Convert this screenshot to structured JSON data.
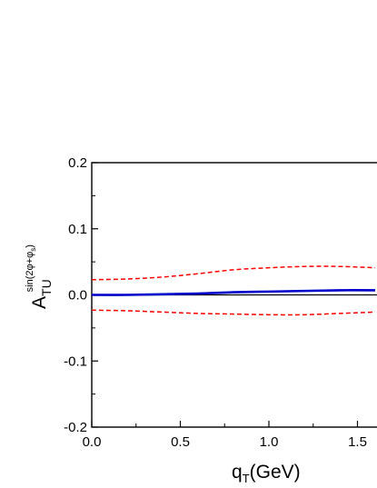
{
  "chart_data": {
    "type": "line",
    "xlabel": "q",
    "xlabel_sub": "T",
    "xlabel_unit": "(GeV)",
    "ylabel": "A",
    "ylabel_sub": "TU",
    "ylabel_sup": "sin(2φ+φ",
    "ylabel_sup_sub": "s",
    "ylabel_sup_close": ")",
    "xlim": [
      0,
      1.6
    ],
    "ylim": [
      -0.2,
      0.2
    ],
    "x_ticks": [
      0.0,
      0.5,
      1.0,
      1.5
    ],
    "x_tick_labels": [
      "0.0",
      "0.5",
      "1.0",
      "1.5"
    ],
    "y_ticks": [
      0.2,
      0.1,
      0.0,
      -0.1,
      -0.2
    ],
    "y_tick_labels": [
      "0.2",
      "0.1",
      "0.0",
      "-0.1",
      "-0.2"
    ],
    "x_minor_step": 0.25,
    "y_minor_step": 0.05,
    "reference_line": {
      "y": 0,
      "color": "#000000"
    },
    "series": [
      {
        "style": "solid",
        "color": "#0000cc",
        "x": [
          0.0,
          0.2,
          0.4,
          0.6,
          0.8,
          1.0,
          1.2,
          1.4,
          1.6
        ],
        "y": [
          0.0,
          0.0,
          0.001,
          0.002,
          0.004,
          0.005,
          0.006,
          0.007,
          0.007
        ]
      },
      {
        "style": "dashed",
        "color": "#ff0000",
        "x": [
          0.0,
          0.2,
          0.4,
          0.6,
          0.8,
          1.0,
          1.2,
          1.4,
          1.6
        ],
        "y": [
          0.023,
          0.024,
          0.027,
          0.032,
          0.038,
          0.041,
          0.043,
          0.043,
          0.041
        ]
      },
      {
        "style": "dashed",
        "color": "#ff0000",
        "x": [
          0.0,
          0.2,
          0.4,
          0.6,
          0.8,
          1.0,
          1.2,
          1.4,
          1.6
        ],
        "y": [
          -0.023,
          -0.024,
          -0.026,
          -0.028,
          -0.029,
          -0.03,
          -0.03,
          -0.028,
          -0.026
        ]
      }
    ]
  }
}
